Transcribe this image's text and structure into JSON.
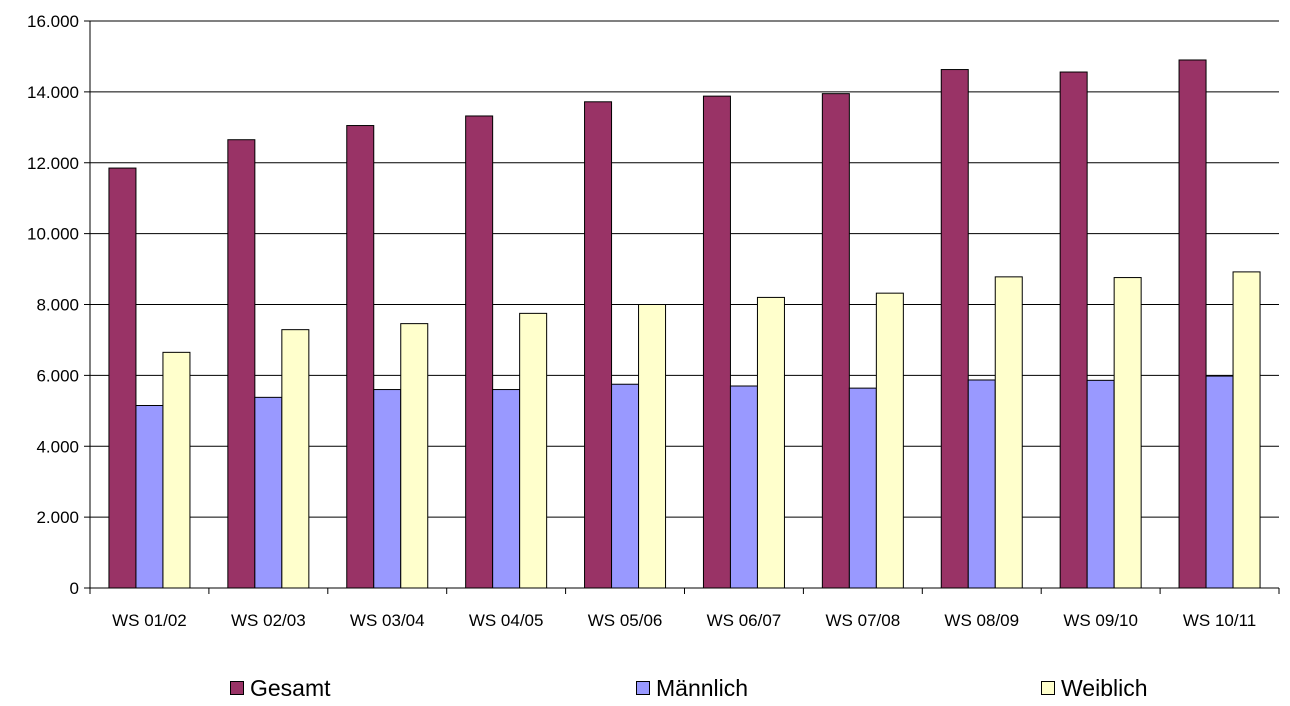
{
  "chart_data": {
    "type": "bar",
    "categories": [
      "WS 01/02",
      "WS 02/03",
      "WS 03/04",
      "WS 04/05",
      "WS 05/06",
      "WS 06/07",
      "WS 07/08",
      "WS 08/09",
      "WS 09/10",
      "WS 10/11"
    ],
    "series": [
      {
        "name": "Gesamt",
        "color": "#993366",
        "values": [
          11850,
          12650,
          13050,
          13320,
          13720,
          13880,
          13950,
          14630,
          14560,
          14900
        ]
      },
      {
        "name": "Männlich",
        "color": "#9999FF",
        "values": [
          5150,
          5380,
          5600,
          5600,
          5750,
          5700,
          5640,
          5870,
          5860,
          5980
        ]
      },
      {
        "name": "Weiblich",
        "color": "#FFFFCC",
        "values": [
          6650,
          7290,
          7460,
          7750,
          8000,
          8200,
          8320,
          8780,
          8760,
          8920
        ]
      }
    ],
    "yticks": [
      "0",
      "2.000",
      "4.000",
      "6.000",
      "8.000",
      "10.000",
      "12.000",
      "14.000",
      "16.000"
    ],
    "ylim": [
      0,
      16000
    ],
    "grid": true,
    "legend_position": "bottom"
  }
}
